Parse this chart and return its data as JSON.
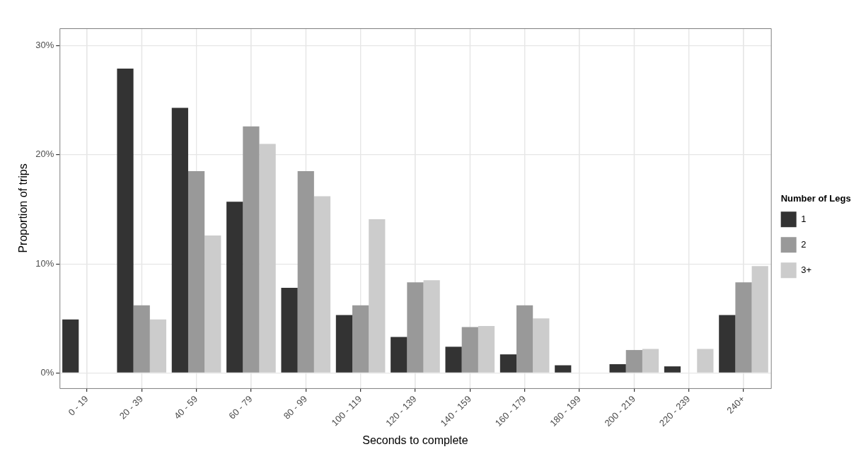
{
  "chart_data": {
    "type": "bar",
    "xlabel": "Seconds to complete",
    "ylabel": "Proportion of trips",
    "legend_title": "Number of Legs",
    "categories": [
      "0 - 19",
      "20 - 39",
      "40 - 59",
      "60 - 79",
      "80 - 99",
      "100 - 119",
      "120 - 139",
      "140 - 159",
      "160 - 179",
      "180 - 199",
      "200 - 219",
      "220 - 239",
      "240+"
    ],
    "series": [
      {
        "name": "1",
        "color": "#333333",
        "values": [
          4.9,
          27.9,
          24.3,
          15.7,
          7.8,
          5.3,
          3.3,
          2.4,
          1.7,
          0.7,
          0.8,
          0.6,
          5.3
        ]
      },
      {
        "name": "2",
        "color": "#999999",
        "values": [
          null,
          6.2,
          18.5,
          22.6,
          18.5,
          6.2,
          8.3,
          4.2,
          6.2,
          null,
          2.1,
          null,
          8.3
        ]
      },
      {
        "name": "3+",
        "color": "#cccccc",
        "values": [
          null,
          4.9,
          12.6,
          21.0,
          16.2,
          14.1,
          8.5,
          4.3,
          5.0,
          null,
          2.2,
          2.2,
          9.8
        ]
      }
    ],
    "ylim": [
      -1.4,
      31.6
    ],
    "yticks": [
      {
        "value": 0,
        "label": "0%"
      },
      {
        "value": 10,
        "label": "10%"
      },
      {
        "value": 20,
        "label": "20%"
      },
      {
        "value": 30,
        "label": "30%"
      }
    ],
    "grid": true,
    "legend": "right"
  }
}
